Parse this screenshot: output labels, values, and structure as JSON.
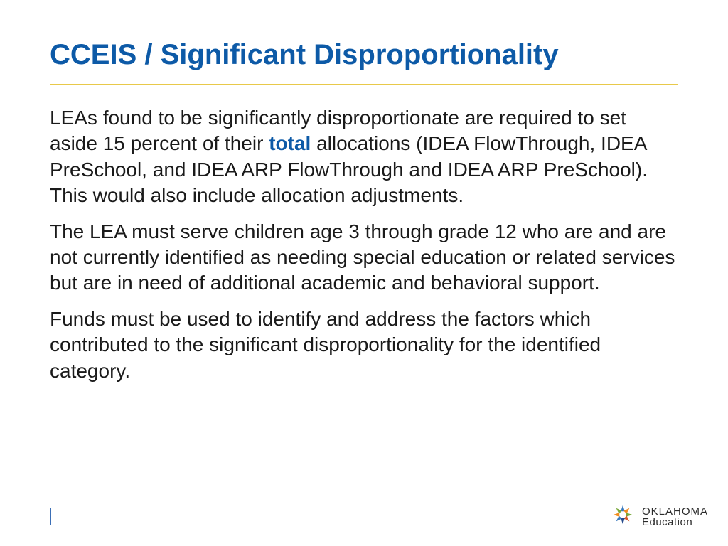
{
  "title": {
    "text": "CCEIS / Significant Disproportionality",
    "color": "#0d5aa7",
    "fontsize": 40,
    "weight": "bold"
  },
  "rule": {
    "color": "#e8c94a",
    "thickness": 2
  },
  "body": {
    "color": "#1a1a1a",
    "fontsize": 28,
    "line_height": 1.3,
    "paragraphs": [
      {
        "runs": [
          {
            "text": "LEAs found to be significantly disproportionate are required to set aside 15 percent of their ",
            "emph": false
          },
          {
            "text": "total",
            "emph": true,
            "color": "#0d5aa7"
          },
          {
            "text": " allocations (IDEA FlowThrough, IDEA PreSchool, and IDEA ARP FlowThrough and IDEA ARP PreSchool). This would also include allocation adjustments.",
            "emph": false
          }
        ]
      },
      {
        "runs": [
          {
            "text": "The LEA must serve children age 3 through grade 12 who are and are not currently identified as needing special education or related services but are in need of additional academic and behavioral support.",
            "emph": false
          }
        ]
      },
      {
        "runs": [
          {
            "text": "Funds must be used to identify and address the factors which contributed to the significant disproportionality for the identified category.",
            "emph": false
          }
        ]
      }
    ]
  },
  "logo": {
    "line1": "OKLAHOMA",
    "line2": "Education",
    "colors": [
      "#3b7bbf",
      "#f28c1e",
      "#7aa93c",
      "#d95b2a",
      "#274b8c"
    ]
  }
}
